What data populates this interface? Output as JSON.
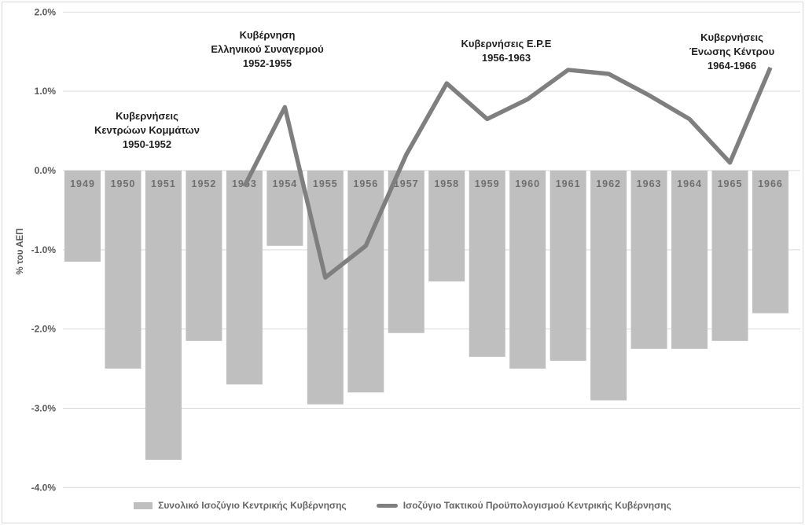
{
  "chart_data": {
    "type": "bar",
    "subtype": "bar-line-combo",
    "title": "",
    "ylabel": "% του ΑΕΠ",
    "ylim": [
      -4.0,
      2.0
    ],
    "grid": true,
    "legend_position": "bottom",
    "yticks": [
      {
        "label": "2.0%",
        "value": 2
      },
      {
        "label": "1.0%",
        "value": 1
      },
      {
        "label": "0.0%",
        "value": 0
      },
      {
        "label": "-1.0%",
        "value": -1
      },
      {
        "label": "-2.0%",
        "value": -2
      },
      {
        "label": "-3.0%",
        "value": -3
      },
      {
        "label": "-4.0%",
        "value": -4
      }
    ],
    "categories": [
      "1949",
      "1950",
      "1951",
      "1952",
      "1953",
      "1954",
      "1955",
      "1956",
      "1957",
      "1958",
      "1959",
      "1960",
      "1961",
      "1962",
      "1963",
      "1964",
      "1965",
      "1966"
    ],
    "series": [
      {
        "name": "Συνολικό Ισοζύγιο Κεντρικής Κυβέρνησης",
        "type": "bar",
        "color": "#BFBFBF",
        "values": [
          -1.15,
          -2.5,
          -3.65,
          -2.15,
          -2.7,
          -0.95,
          -2.95,
          -2.8,
          -2.05,
          -1.4,
          -2.35,
          -2.5,
          -2.4,
          -2.9,
          -2.25,
          -2.25,
          -2.15,
          -1.8
        ]
      },
      {
        "name": "Ισοζύγιο Τακτικού Προϋπολογισμού Κεντρικής Κυβέρνησης",
        "type": "line",
        "color": "#7F7F7F",
        "values": [
          null,
          null,
          null,
          null,
          -0.2,
          0.8,
          -1.35,
          -0.95,
          0.2,
          1.1,
          0.65,
          0.9,
          1.27,
          1.22,
          0.95,
          0.65,
          0.1,
          1.3
        ]
      }
    ],
    "annotations": [
      {
        "lines": [
          "Κυβερνήσεις",
          "Κεντρώων Κομμάτων",
          "1950-1952"
        ]
      },
      {
        "lines": [
          "Κυβέρνηση",
          "Ελληνικού Συναγερμού",
          "1952-1955"
        ]
      },
      {
        "lines": [
          "Κυβερνήσεις Ε.Ρ.Ε",
          "1956-1963"
        ]
      },
      {
        "lines": [
          "Κυβερνήσεις",
          "Ένωσης Κέντρου",
          "1964-1966"
        ]
      }
    ]
  },
  "legend": {
    "items": [
      {
        "label": "Συνολικό Ισοζύγιο Κεντρικής Κυβέρνησης",
        "swatch": "bar"
      },
      {
        "label": "Ισοζύγιο Τακτικού Προϋπολογισμού Κεντρικής Κυβέρνησης",
        "swatch": "line"
      }
    ]
  },
  "colors": {
    "bar": "#BFBFBF",
    "line": "#7F7F7F",
    "grid": "#D9D9D9",
    "tick_text": "#595959",
    "bar_label_text": "#6F6F6F",
    "annotation_text": "#1F1F1F",
    "legend_text": "#666666"
  }
}
